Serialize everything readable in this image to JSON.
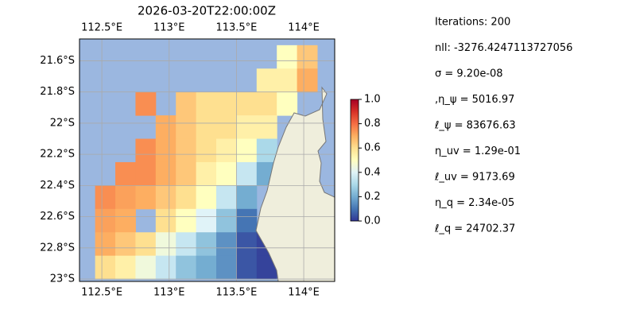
{
  "chart_data": {
    "type": "heatmap-map",
    "title": "2026-03-20T22:00:00Z",
    "xlim": [
      112.334,
      114.23
    ],
    "ylim": [
      -23.015,
      -21.46
    ],
    "xticks": [
      {
        "value": 112.5,
        "label": "112.5°E"
      },
      {
        "value": 113,
        "label": "113°E"
      },
      {
        "value": 113.5,
        "label": "113.5°E"
      },
      {
        "value": 114,
        "label": "114°E"
      }
    ],
    "yticks": [
      {
        "value": -21.6,
        "label": "21.6°S"
      },
      {
        "value": -21.8,
        "label": "21.8°S"
      },
      {
        "value": -22,
        "label": "22°S"
      },
      {
        "value": -22.2,
        "label": "22.2°S"
      },
      {
        "value": -22.4,
        "label": "22.4°S"
      },
      {
        "value": -22.6,
        "label": "22.6°S"
      },
      {
        "value": -22.8,
        "label": "22.8°S"
      },
      {
        "value": -23,
        "label": "23°S"
      }
    ],
    "grid": true,
    "colormap": [
      "#313695",
      "#4575b4",
      "#74add1",
      "#abd9e9",
      "#e0f3f8",
      "#ffffbf",
      "#fee090",
      "#fdae61",
      "#f46d43",
      "#d73027",
      "#a50026"
    ],
    "colorbar": {
      "lim": [
        0,
        1
      ],
      "ticks": [
        {
          "value": 0,
          "label": "0.0"
        },
        {
          "value": 0.2,
          "label": "0.2"
        },
        {
          "value": 0.4,
          "label": "0.4"
        },
        {
          "value": 0.6,
          "label": "0.6"
        },
        {
          "value": 0.8,
          "label": "0.8"
        },
        {
          "value": 1,
          "label": "1.0"
        }
      ]
    },
    "field": {
      "lon_edges": [
        112.45,
        112.6,
        112.75,
        112.9,
        113.05,
        113.2,
        113.35,
        113.5,
        113.65,
        113.8,
        113.95,
        114.1
      ],
      "lat_edges": [
        -21.5,
        -21.65,
        -21.8,
        -21.95,
        -22.1,
        -22.25,
        -22.4,
        -22.55,
        -22.7,
        -22.85,
        -23.0
      ],
      "values": [
        [
          null,
          null,
          null,
          null,
          null,
          null,
          null,
          null,
          null,
          0.5,
          0.65
        ],
        [
          null,
          null,
          null,
          null,
          null,
          null,
          null,
          null,
          0.55,
          0.55,
          0.7
        ],
        [
          null,
          null,
          0.75,
          null,
          0.65,
          0.6,
          0.6,
          0.6,
          0.6,
          0.5,
          null
        ],
        [
          null,
          null,
          null,
          0.7,
          0.65,
          0.6,
          0.6,
          0.55,
          0.55,
          null,
          null
        ],
        [
          null,
          null,
          0.75,
          0.7,
          0.65,
          0.6,
          0.55,
          0.5,
          0.3,
          null,
          null
        ],
        [
          null,
          0.75,
          0.75,
          0.7,
          0.65,
          0.55,
          0.5,
          0.35,
          0.2,
          null,
          null
        ],
        [
          0.75,
          0.72,
          0.7,
          0.65,
          0.6,
          0.5,
          0.35,
          0.2,
          null,
          null,
          null
        ],
        [
          0.72,
          0.7,
          null,
          0.6,
          0.5,
          0.4,
          0.25,
          0.1,
          null,
          null,
          null
        ],
        [
          0.7,
          0.65,
          0.6,
          0.45,
          0.35,
          0.25,
          0.15,
          0.05,
          0.02,
          null,
          null
        ],
        [
          0.6,
          0.55,
          0.45,
          0.35,
          0.25,
          0.2,
          0.15,
          0.05,
          0.02,
          null,
          null
        ]
      ]
    },
    "annotations": [
      "Iterations: 200",
      "nll: -3276.4247113727056",
      "σ = 9.20e-08",
      ",η_ψ = 5016.97",
      "ℓ_ψ = 83676.63",
      "η_uv = 1.29e-01",
      "ℓ_uv = 9173.69",
      "η_q = 2.34e-05",
      "ℓ_q = 24702.37"
    ]
  }
}
